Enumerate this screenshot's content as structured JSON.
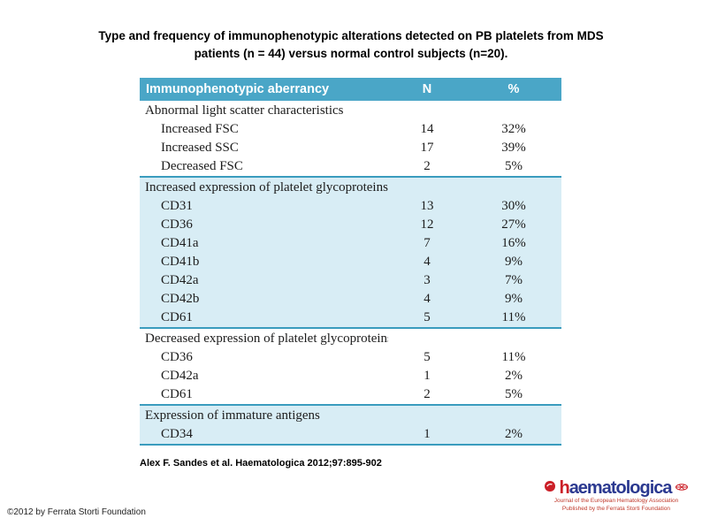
{
  "title": {
    "line1": "Type and frequency of immunophenotypic alterations detected on PB platelets from MDS",
    "line2": "patients (n = 44) versus normal control subjects (n=20)."
  },
  "table": {
    "columns": [
      "Immunophenotypic aberrancy",
      "N",
      "%"
    ],
    "sections": [
      {
        "name": "Abnormal light scatter characteristics",
        "items": [
          {
            "label": "Increased FSC",
            "n": "14",
            "pct": "32%"
          },
          {
            "label": "Increased SSC",
            "n": "17",
            "pct": "39%"
          },
          {
            "label": "Decreased FSC",
            "n": "2",
            "pct": "5%"
          }
        ]
      },
      {
        "name": "Increased expression of platelet glycoproteins",
        "items": [
          {
            "label": "CD31",
            "n": "13",
            "pct": "30%"
          },
          {
            "label": "CD36",
            "n": "12",
            "pct": "27%"
          },
          {
            "label": "CD41a",
            "n": "7",
            "pct": "16%"
          },
          {
            "label": "CD41b",
            "n": "4",
            "pct": "9%"
          },
          {
            "label": "CD42a",
            "n": "3",
            "pct": "7%"
          },
          {
            "label": "CD42b",
            "n": "4",
            "pct": "9%"
          },
          {
            "label": "CD61",
            "n": "5",
            "pct": "11%"
          }
        ]
      },
      {
        "name": "Decreased expression of platelet glycoproteins",
        "items": [
          {
            "label": "CD36",
            "n": "5",
            "pct": "11%"
          },
          {
            "label": "CD42a",
            "n": "1",
            "pct": "2%"
          },
          {
            "label": "CD61",
            "n": "2",
            "pct": "5%"
          }
        ]
      },
      {
        "name": "Expression of immature antigens",
        "items": [
          {
            "label": "CD34",
            "n": "1",
            "pct": "2%"
          }
        ]
      }
    ]
  },
  "citation": "Alex F. Sandes et al. Haematologica 2012;97:895-902",
  "copyright": "©2012 by Ferrata Storti Foundation",
  "logo": {
    "wordmark_first": "h",
    "wordmark_rest": "aematologica",
    "tagline_line1": "Journal of the European Hematology Association",
    "tagline_line2": "Published by the Ferrata Storti Foundation"
  },
  "colors": {
    "header_teal": "#4aa6c7",
    "row_highlight": "#d8edf5",
    "divider_teal": "#3a9cbe",
    "logo_blue": "#2b3990",
    "logo_red": "#cb1f27"
  }
}
